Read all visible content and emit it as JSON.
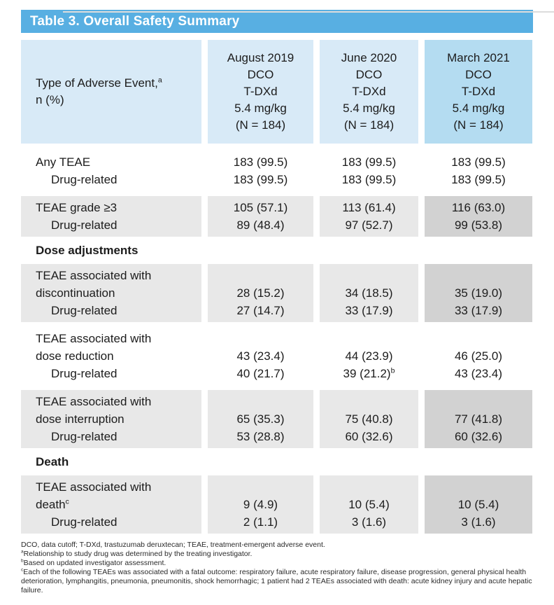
{
  "title": "Table 3. Overall Safety Summary",
  "colors": {
    "title_bar": "#58AFE2",
    "header_cell": "#D8EAF7",
    "header_cell_highlight": "#B4DCF1",
    "row_shaded": "#E8E8E8",
    "row_shaded_highlight": "#D2D2D2"
  },
  "header": {
    "label_main": "Type of Adverse Event,",
    "label_sup": "a",
    "label_line2": "n (%)",
    "columns": [
      "August 2019\nDCO\nT-DXd\n5.4 mg/kg\n(N = 184)",
      "June 2020\nDCO\nT-DXd\n5.4 mg/kg\n(N = 184)",
      "March 2021\nDCO\nT-DXd\n5.4 mg/kg\n(N = 184)"
    ]
  },
  "sections": [
    "Dose adjustments",
    "Death"
  ],
  "groups": [
    {
      "label": "Any TEAE",
      "drug_label": "Drug-related",
      "values": [
        "183 (99.5)",
        "183 (99.5)",
        "183 (99.5)"
      ],
      "drug_values": [
        "183 (99.5)",
        "183 (99.5)",
        "183 (99.5)"
      ]
    },
    {
      "label": "TEAE grade ≥3",
      "drug_label": "Drug-related",
      "values": [
        "105 (57.1)",
        "113 (61.4)",
        "116 (63.0)"
      ],
      "drug_values": [
        "89 (48.4)",
        "97 (52.7)",
        "99 (53.8)"
      ]
    },
    {
      "label": "TEAE associated with\ndiscontinuation",
      "drug_label": "Drug-related",
      "values": [
        "28 (15.2)",
        "34 (18.5)",
        "35 (19.0)"
      ],
      "drug_values": [
        "27 (14.7)",
        "33 (17.9)",
        "33 (17.9)"
      ]
    },
    {
      "label": "TEAE associated with\ndose reduction",
      "drug_label": "Drug-related",
      "values": [
        "43 (23.4)",
        "44 (23.9)",
        "46 (25.0)"
      ],
      "drug_values": [
        "40 (21.7)",
        "39 (21.2)",
        "43 (23.4)"
      ],
      "drug_value_1_sup": "b"
    },
    {
      "label": "TEAE associated with\ndose interruption",
      "drug_label": "Drug-related",
      "values": [
        "65 (35.3)",
        "75 (40.8)",
        "77 (41.8)"
      ],
      "drug_values": [
        "53 (28.8)",
        "60 (32.6)",
        "60 (32.6)"
      ]
    },
    {
      "label": "TEAE associated with\ndeath",
      "label_sup": "c",
      "drug_label": "Drug-related",
      "values": [
        "9 (4.9)",
        "10 (5.4)",
        "10 (5.4)"
      ],
      "drug_values": [
        "2 (1.1)",
        "3 (1.6)",
        "3 (1.6)"
      ]
    }
  ],
  "footnotes": [
    {
      "sup": "",
      "text": "DCO, data cutoff; T-DXd, trastuzumab deruxtecan; TEAE, treatment-emergent adverse event."
    },
    {
      "sup": "a",
      "text": "Relationship to study drug was determined by the treating investigator."
    },
    {
      "sup": "b",
      "text": "Based on updated investigator assessment."
    },
    {
      "sup": "c",
      "text": "Each of the following TEAEs was associated with a fatal outcome: respiratory failure, acute respiratory failure, disease progression, general physical health deterioration, lymphangitis, pneumonia, pneumonitis, shock hemorrhagic; 1 patient had 2 TEAEs associated with death: acute kidney injury and acute hepatic failure."
    }
  ]
}
